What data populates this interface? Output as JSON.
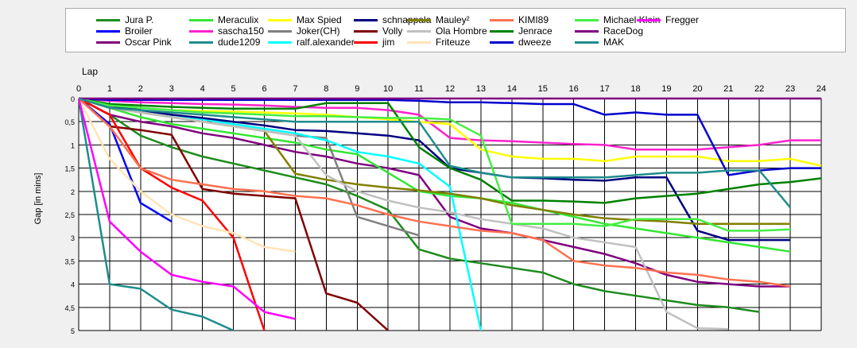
{
  "chart_data": {
    "type": "line",
    "xlabel": "Lap",
    "ylabel": "Gap [in mins]",
    "xlim": [
      0,
      24
    ],
    "ylim": [
      0,
      5
    ],
    "y_inverted": true,
    "grid": true,
    "legend_position": "top",
    "x_ticks": [
      0,
      1,
      2,
      3,
      4,
      5,
      6,
      7,
      8,
      9,
      10,
      11,
      12,
      13,
      14,
      15,
      16,
      17,
      18,
      19,
      20,
      21,
      22,
      23,
      24
    ],
    "y_ticks": [
      0,
      0.5,
      1,
      1.5,
      2,
      2.5,
      3,
      3.5,
      4,
      4.5,
      5
    ],
    "y_tick_labels": [
      "0",
      "0,5",
      "1",
      "1,5",
      "2",
      "2,5",
      "3",
      "3,5",
      "4",
      "4,5",
      "5"
    ],
    "series": [
      {
        "name": "Jura P.",
        "color": "#1e8c1e",
        "values": [
          0,
          0.35,
          0.8,
          1.05,
          1.25,
          1.4,
          1.55,
          1.7,
          1.85,
          2.1,
          2.4,
          3.25,
          3.45,
          3.55,
          3.65,
          3.75,
          4.0,
          4.15,
          4.25,
          4.35,
          4.45,
          4.5,
          4.6,
          null,
          null
        ]
      },
      {
        "name": "Broiler",
        "color": "#0000ff",
        "values": [
          0,
          0.55,
          2.25,
          2.65,
          null,
          null,
          null,
          null,
          null,
          null,
          null,
          null,
          null,
          null,
          null,
          null,
          null,
          null,
          null,
          null,
          null,
          null,
          null,
          null,
          null
        ]
      },
      {
        "name": "Oscar Pink",
        "color": "#800080",
        "values": [
          0,
          0.35,
          0.5,
          0.6,
          0.75,
          0.85,
          1.0,
          1.15,
          1.25,
          1.4,
          1.5,
          1.65,
          2.55,
          2.8,
          2.9,
          3.05,
          3.2,
          3.35,
          3.55,
          3.8,
          3.95,
          4.0,
          4.05,
          4.05,
          null
        ]
      },
      {
        "name": "Meraculix",
        "color": "#32e632",
        "values": [
          0,
          0.2,
          0.4,
          0.55,
          0.65,
          0.75,
          0.85,
          0.95,
          1.1,
          1.2,
          1.6,
          2.0,
          2.1,
          2.15,
          2.25,
          2.4,
          2.55,
          2.7,
          2.8,
          2.9,
          3.0,
          3.1,
          3.2,
          3.3,
          null
        ]
      },
      {
        "name": "sascha150",
        "color": "#ff22cc",
        "values": [
          0,
          0.05,
          0.08,
          0.1,
          0.12,
          0.13,
          0.15,
          0.18,
          0.2,
          0.2,
          0.25,
          0.35,
          0.85,
          0.9,
          0.92,
          0.95,
          0.98,
          1.0,
          1.1,
          1.1,
          1.1,
          1.05,
          1.0,
          0.9,
          0.9
        ]
      },
      {
        "name": "dude1209",
        "color": "#1f8c8c",
        "values": [
          0,
          4.0,
          4.1,
          4.55,
          4.7,
          5.0,
          null,
          null,
          null,
          null,
          null,
          null,
          null,
          null,
          null,
          null,
          null,
          null,
          null,
          null,
          null,
          null,
          null,
          null,
          null
        ]
      },
      {
        "name": "Max Spied",
        "color": "#ffff00",
        "values": [
          0,
          0.15,
          0.2,
          0.25,
          0.27,
          0.28,
          0.3,
          0.32,
          0.35,
          0.4,
          0.45,
          0.5,
          0.55,
          1.1,
          1.25,
          1.3,
          1.3,
          1.35,
          1.25,
          1.25,
          1.25,
          1.35,
          1.35,
          1.3,
          1.45
        ]
      },
      {
        "name": "Joker(CH)",
        "color": "#808080",
        "values": [
          0,
          0.2,
          0.3,
          0.4,
          0.5,
          0.6,
          0.7,
          0.8,
          0.85,
          2.55,
          2.75,
          2.95,
          null,
          null,
          null,
          null,
          null,
          null,
          null,
          null,
          null,
          null,
          null,
          null,
          null
        ]
      },
      {
        "name": "ralf.alexander",
        "color": "#00ffff",
        "values": [
          0,
          0.15,
          0.25,
          0.35,
          0.45,
          0.55,
          0.65,
          0.75,
          0.9,
          1.15,
          1.25,
          1.4,
          1.9,
          5.0,
          null,
          null,
          null,
          null,
          null,
          null,
          null,
          null,
          null,
          null,
          null
        ]
      },
      {
        "name": "schnappala",
        "color": "#000080",
        "values": [
          0,
          0.15,
          0.25,
          0.35,
          0.42,
          0.5,
          0.58,
          0.68,
          0.7,
          0.75,
          0.8,
          0.9,
          1.5,
          1.6,
          1.7,
          1.72,
          1.75,
          1.77,
          1.7,
          1.7,
          2.85,
          3.05,
          3.05,
          3.05,
          null
        ]
      },
      {
        "name": "Volly",
        "color": "#800000",
        "values": [
          0,
          0.6,
          0.68,
          0.78,
          1.95,
          2.05,
          2.1,
          2.15,
          4.2,
          4.4,
          5.0,
          null,
          null,
          null,
          null,
          null,
          null,
          null,
          null,
          null,
          null,
          null,
          null,
          null,
          null
        ]
      },
      {
        "name": "jim",
        "color": "#ff0000",
        "values": [
          0,
          0.35,
          1.5,
          1.92,
          2.2,
          3.0,
          5.0,
          null,
          null,
          null,
          null,
          null,
          null,
          null,
          null,
          null,
          null,
          null,
          null,
          null,
          null,
          null,
          null,
          null,
          null
        ]
      },
      {
        "name": "Mauley²",
        "color": "#808000",
        "values": [
          0,
          0.2,
          0.3,
          0.4,
          0.5,
          0.6,
          0.7,
          1.62,
          1.75,
          1.85,
          1.92,
          1.98,
          2.05,
          2.15,
          2.3,
          2.4,
          2.5,
          2.58,
          2.62,
          2.65,
          2.7,
          2.7,
          2.7,
          2.7,
          null
        ]
      },
      {
        "name": "Ola Hombre",
        "color": "#c0c0c0",
        "values": [
          0,
          0.2,
          0.3,
          0.4,
          0.5,
          0.6,
          0.7,
          0.8,
          1.65,
          2.0,
          2.2,
          2.35,
          2.45,
          2.6,
          2.7,
          2.8,
          3.0,
          3.1,
          3.2,
          4.6,
          4.95,
          4.97,
          null,
          null,
          null
        ]
      },
      {
        "name": "Friteuze",
        "color": "#ffe4b5",
        "values": [
          0,
          1.3,
          2.0,
          2.5,
          2.75,
          2.9,
          3.2,
          3.3,
          null,
          null,
          null,
          null,
          null,
          null,
          null,
          null,
          null,
          null,
          null,
          null,
          null,
          null,
          null,
          null,
          null
        ]
      },
      {
        "name": "KIMI89",
        "color": "#ff7050",
        "values": [
          0,
          0.6,
          1.5,
          1.75,
          1.85,
          1.95,
          2.0,
          2.1,
          2.15,
          2.3,
          2.5,
          2.65,
          2.75,
          2.85,
          2.9,
          3.05,
          3.5,
          3.6,
          3.65,
          3.75,
          3.8,
          3.9,
          3.95,
          4.05,
          null
        ]
      },
      {
        "name": "Jenrace",
        "color": "#008000",
        "values": [
          0,
          0.12,
          0.15,
          0.18,
          0.2,
          0.22,
          0.22,
          0.22,
          0.1,
          0.1,
          0.1,
          1.05,
          1.5,
          1.75,
          2.2,
          2.2,
          2.22,
          2.25,
          2.15,
          2.1,
          2.05,
          1.95,
          1.85,
          1.8,
          1.72
        ]
      },
      {
        "name": "dweeze",
        "color": "#0000cd",
        "values": [
          0,
          0.03,
          0.03,
          0.03,
          0.03,
          0.03,
          0.03,
          0.03,
          0.03,
          0.03,
          0.03,
          0.05,
          0.08,
          0.08,
          0.1,
          0.12,
          0.12,
          0.35,
          0.3,
          0.35,
          0.35,
          1.65,
          1.55,
          1.5,
          1.5
        ]
      },
      {
        "name": "Michael Klein",
        "color": "#44ee44",
        "values": [
          0,
          0.15,
          0.2,
          0.25,
          0.3,
          0.32,
          0.35,
          0.38,
          0.38,
          0.4,
          0.42,
          0.42,
          0.45,
          0.8,
          2.7,
          2.7,
          2.7,
          2.75,
          2.6,
          2.6,
          2.6,
          2.85,
          2.85,
          2.82,
          null
        ]
      },
      {
        "name": "RaceDog",
        "color": "#800080",
        "values": [
          0,
          0,
          0,
          0,
          0,
          0,
          0,
          0,
          0,
          0,
          0,
          0,
          0,
          0,
          0,
          0,
          0,
          0,
          0,
          0,
          0,
          0,
          0,
          0,
          0
        ]
      },
      {
        "name": "MAK",
        "color": "#1f8c8c",
        "values": [
          0,
          0.2,
          0.25,
          0.3,
          0.35,
          0.4,
          0.45,
          0.5,
          0.5,
          0.5,
          0.5,
          0.5,
          1.45,
          1.6,
          1.7,
          1.7,
          1.7,
          1.7,
          1.65,
          1.6,
          1.6,
          1.55,
          1.55,
          2.35,
          null
        ]
      },
      {
        "name": "Fregger",
        "color": "#ff00ff",
        "values": [
          0,
          2.65,
          3.3,
          3.8,
          3.95,
          4.05,
          4.6,
          4.75,
          null,
          null,
          null,
          null,
          null,
          null,
          null,
          null,
          null,
          null,
          null,
          null,
          null,
          null,
          null,
          null,
          null
        ]
      }
    ]
  }
}
